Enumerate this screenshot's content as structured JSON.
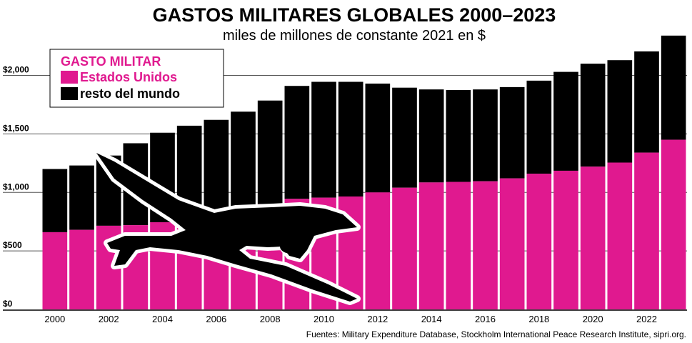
{
  "colors": {
    "us": "#e0198f",
    "rest": "#000000",
    "grid": "#555555"
  },
  "chart_data": {
    "type": "bar",
    "stacked": true,
    "title": "GASTOS MILITARES GLOBALES 2000–2023",
    "subtitle": "miles de millones de constante 2021 en $",
    "source": "Fuentes: Military Expenditure Database, Stockholm International Peace Research Institute, sipri.org.",
    "legend": {
      "title": "GASTO MILITAR",
      "placement": "top-left"
    },
    "ylim": [
      0,
      2400
    ],
    "grid": true,
    "yticks": [
      {
        "value": 0,
        "label": "$0"
      },
      {
        "value": 500,
        "label": "$500"
      },
      {
        "value": 1000,
        "label": "$1,000"
      },
      {
        "value": 1500,
        "label": "$1,500"
      },
      {
        "value": 2000,
        "label": "$2,000"
      }
    ],
    "categories": [
      2000,
      2001,
      2002,
      2003,
      2004,
      2005,
      2006,
      2007,
      2008,
      2009,
      2010,
      2011,
      2012,
      2013,
      2014,
      2015,
      2016,
      2017,
      2018,
      2019,
      2020,
      2021,
      2022,
      2023
    ],
    "xtick_labels": [
      "2000",
      "2002",
      "2004",
      "2006",
      "2008",
      "2010",
      "2012",
      "2014",
      "2016",
      "2018",
      "2020",
      "2022"
    ],
    "series": [
      {
        "name": "Estados Unidos",
        "values": [
          660,
          680,
          715,
          720,
          745,
          765,
          810,
          860,
          900,
          945,
          955,
          965,
          1000,
          1040,
          1085,
          1090,
          1095,
          1120,
          1160,
          1185,
          1220,
          1255,
          1340,
          1450
        ]
      },
      {
        "name": "resto del mundo",
        "values": [
          540,
          550,
          600,
          700,
          765,
          805,
          810,
          830,
          885,
          965,
          990,
          980,
          930,
          855,
          795,
          785,
          785,
          780,
          795,
          845,
          880,
          875,
          865,
          890
        ]
      }
    ]
  }
}
